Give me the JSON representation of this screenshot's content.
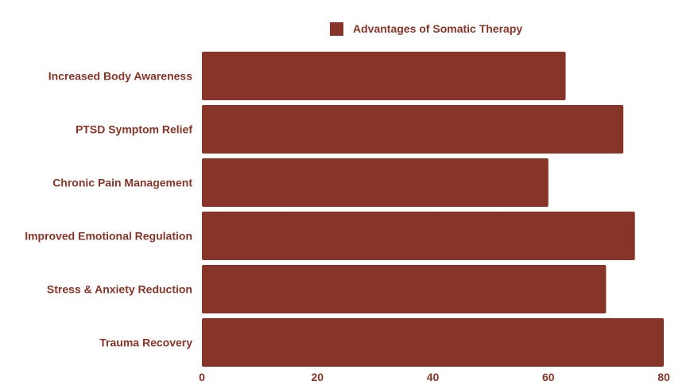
{
  "chart_data": {
    "type": "bar",
    "orientation": "horizontal",
    "title": "",
    "xlabel": "",
    "ylabel": "",
    "categories": [
      "Increased Body Awareness",
      "PTSD Symptom Relief",
      "Chronic Pain Management",
      "Improved Emotional Regulation",
      "Stress & Anxiety Reduction",
      "Trauma Recovery"
    ],
    "series": [
      {
        "name": "Advantages of Somatic Therapy",
        "values": [
          63,
          73,
          60,
          75,
          70,
          80
        ],
        "color": "#873528"
      }
    ],
    "xlim": [
      0,
      80
    ],
    "xticks": [
      "0",
      "20",
      "40",
      "60",
      "80"
    ],
    "grid": false,
    "legend": "top-center",
    "text_color": "#873528"
  }
}
